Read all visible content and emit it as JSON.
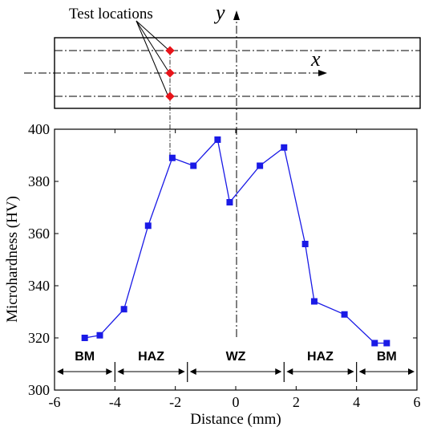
{
  "schematic": {
    "annotation": "Test locations",
    "y_axis_label": "y",
    "x_axis_label": "x",
    "marker_color": "#e8141a"
  },
  "chart_data": {
    "type": "line",
    "xlabel": "Distance (mm)",
    "ylabel": "Microhardness (HV)",
    "xlim": [
      -6,
      6
    ],
    "ylim": [
      300,
      400
    ],
    "xticks": [
      "-6",
      "-4",
      "-2",
      "0",
      "2",
      "4",
      "6"
    ],
    "yticks": [
      "300",
      "320",
      "340",
      "360",
      "380",
      "400"
    ],
    "series": [
      {
        "color": "#1a1ae6",
        "points": [
          [
            -5.0,
            320
          ],
          [
            -4.5,
            321
          ],
          [
            -3.7,
            331
          ],
          [
            -2.9,
            363
          ],
          [
            -2.1,
            389
          ],
          [
            -1.4,
            386
          ],
          [
            -0.6,
            396
          ],
          [
            -0.2,
            372
          ],
          [
            0.8,
            386
          ],
          [
            1.6,
            393
          ],
          [
            2.3,
            356
          ],
          [
            2.6,
            334
          ],
          [
            3.6,
            329
          ],
          [
            4.6,
            318
          ],
          [
            5.0,
            318
          ]
        ]
      }
    ],
    "zones": [
      {
        "label": "BM",
        "from": -6.0,
        "to": -4.0
      },
      {
        "label": "HAZ",
        "from": -4.0,
        "to": -1.6
      },
      {
        "label": "WZ",
        "from": -1.6,
        "to": 1.6
      },
      {
        "label": "HAZ",
        "from": 1.6,
        "to": 4.0
      },
      {
        "label": "BM",
        "from": 4.0,
        "to": 6.0
      }
    ]
  }
}
